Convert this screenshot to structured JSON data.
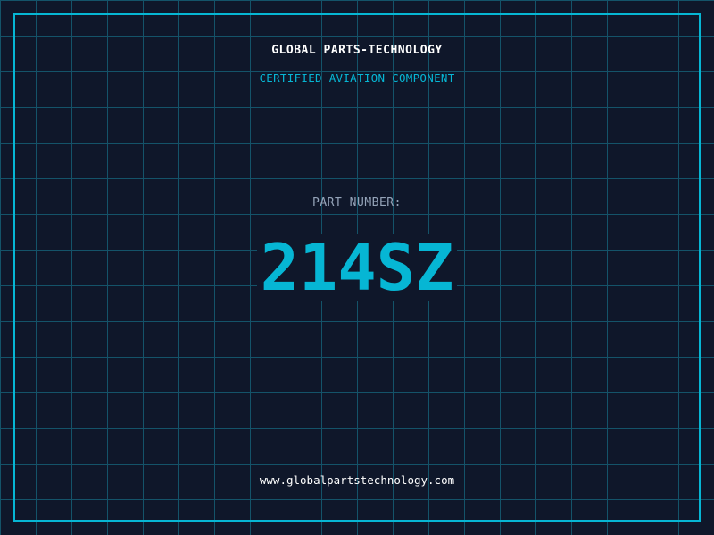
{
  "company": "GLOBAL PARTS-TECHNOLOGY",
  "subtitle": "CERTIFIED AVIATION COMPONENT",
  "part_label": "PART NUMBER:",
  "part_number": "214SZ",
  "website": "www.globalpartstechnology.com",
  "colors": {
    "background": "#0f172a",
    "accent": "#06b6d4",
    "grid": "#155e75"
  }
}
